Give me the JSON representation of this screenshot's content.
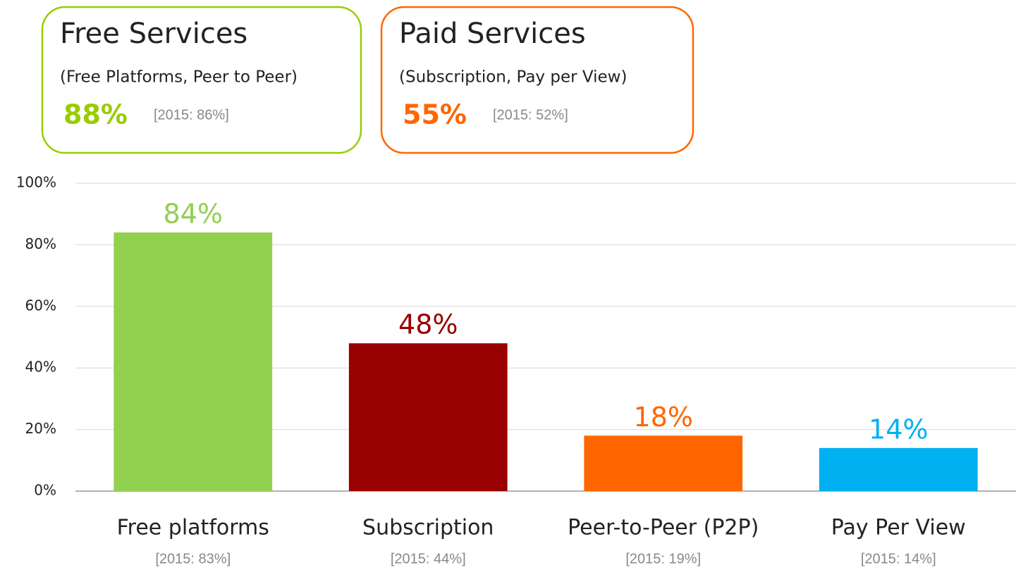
{
  "chart_data": {
    "type": "bar",
    "categories": [
      "Free platforms",
      "Subscription",
      "Peer-to-Peer (P2P)",
      "Pay Per View"
    ],
    "category_notes": [
      "[2015: 83%]",
      "[2015: 44%]",
      "[2015: 19%]",
      "[2015: 14%]"
    ],
    "values": [
      84,
      48,
      18,
      14
    ],
    "value_labels": [
      "84%",
      "48%",
      "18%",
      "14%"
    ],
    "colors": [
      "#92d050",
      "#990000",
      "#ff6600",
      "#00b0f0"
    ],
    "ylim": [
      0,
      100
    ],
    "yticks": [
      {
        "value": 0,
        "label": "0%"
      },
      {
        "value": 20,
        "label": "20%"
      },
      {
        "value": 40,
        "label": "40%"
      },
      {
        "value": 60,
        "label": "60%"
      },
      {
        "value": 80,
        "label": "80%"
      },
      {
        "value": 100,
        "label": "100%"
      }
    ],
    "grid": true,
    "annotations": [
      {
        "title": "Free Services",
        "subtitle": "(Free Platforms, Peer to Peer)",
        "value": 88,
        "value_label": "88%",
        "note": "[2015: 86%]",
        "color": "#99cc00"
      },
      {
        "title": "Paid Services",
        "subtitle": "(Subscription, Pay per View)",
        "value": 55,
        "value_label": "55%",
        "note": "[2015: 52%]",
        "color": "#ff6600"
      }
    ]
  }
}
